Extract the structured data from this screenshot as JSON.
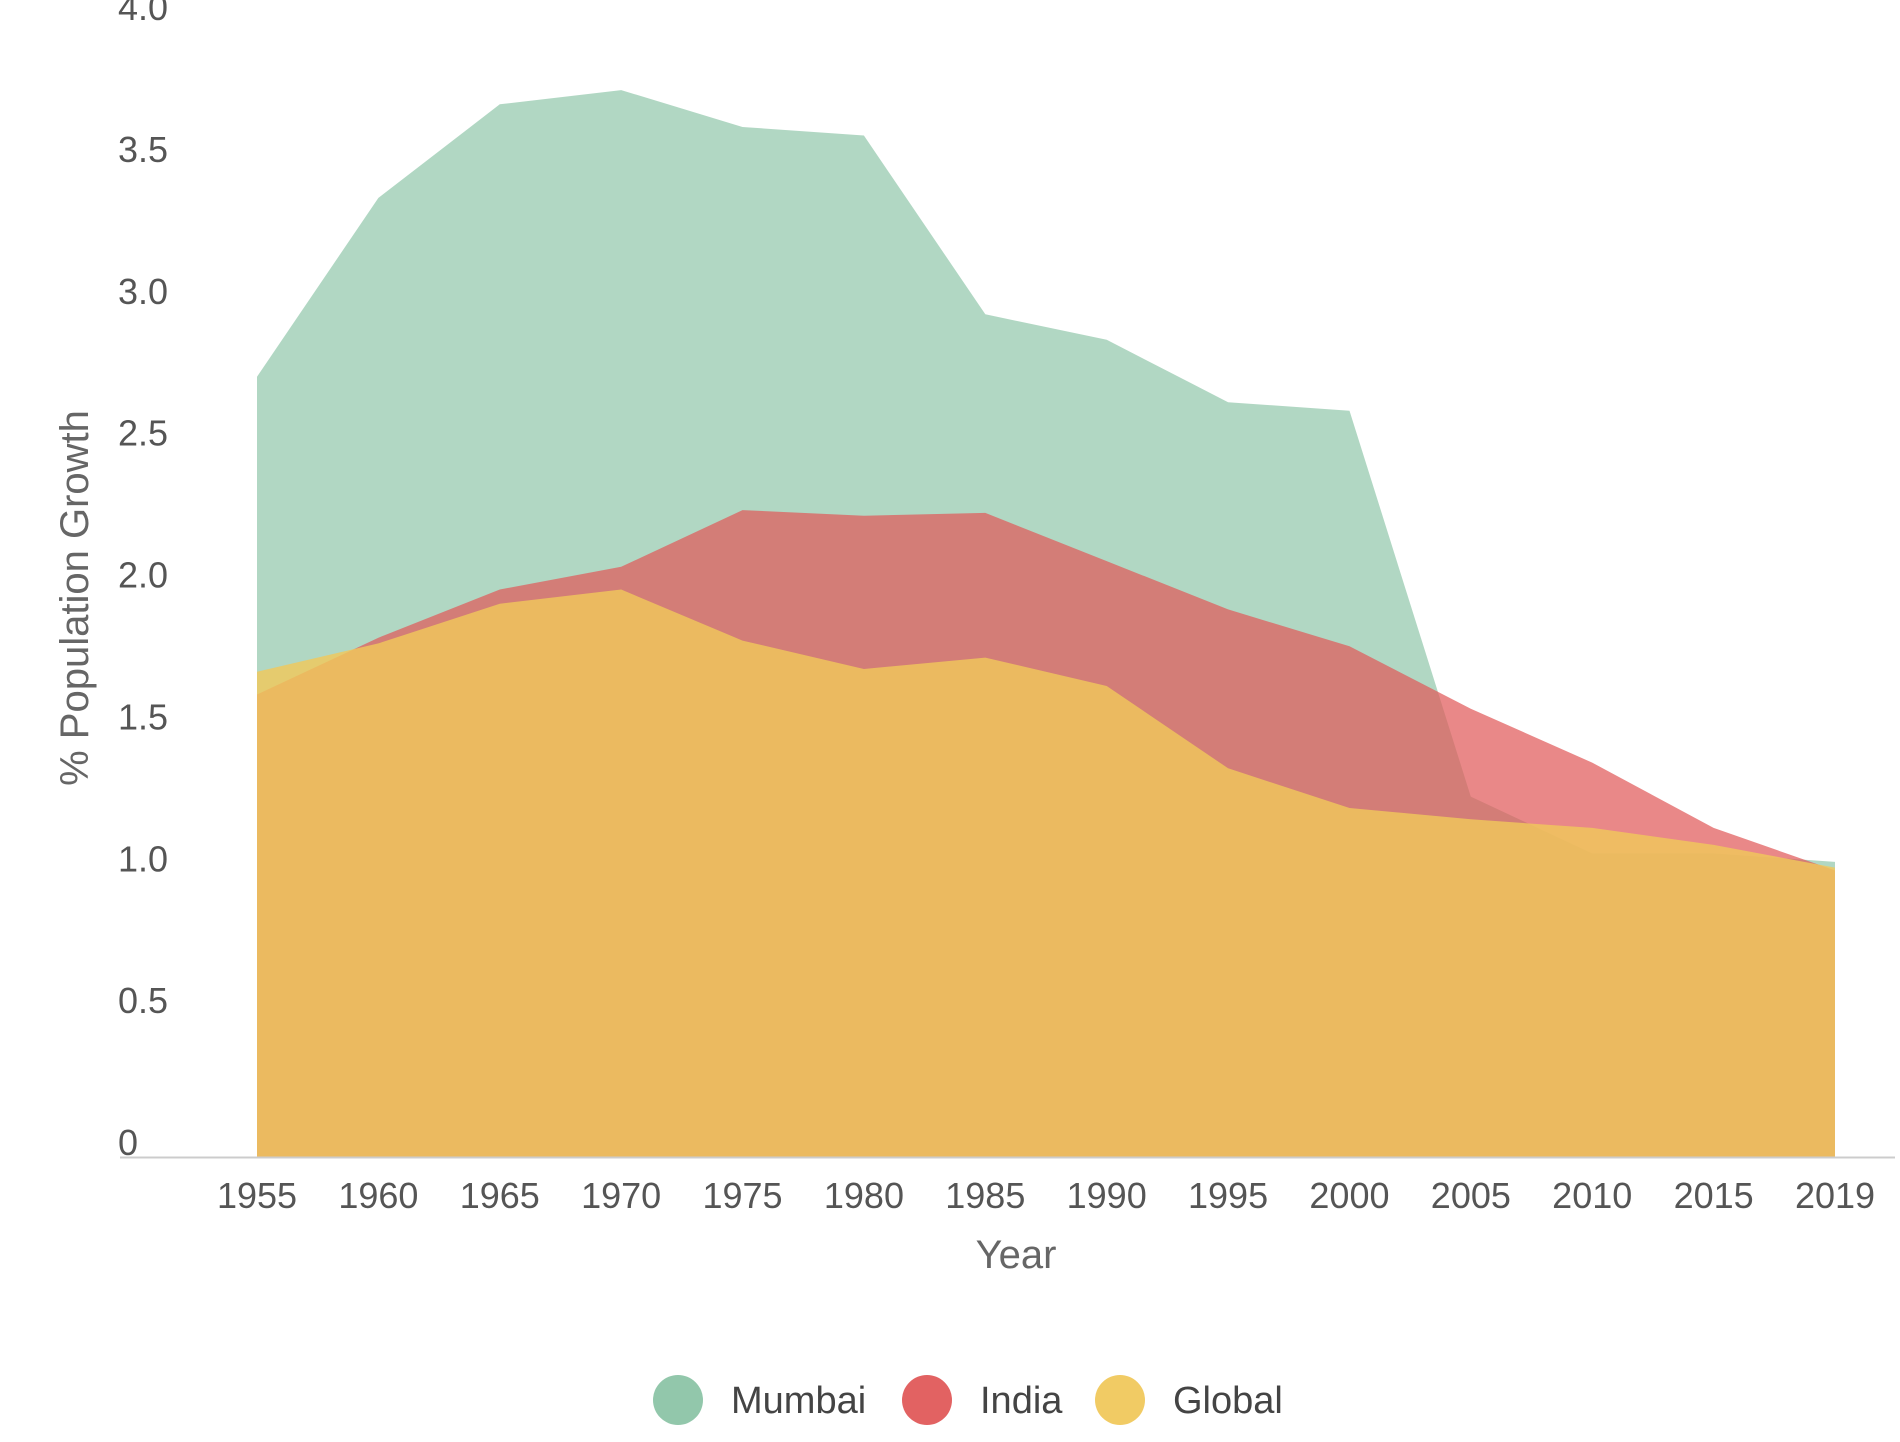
{
  "chart_data": {
    "type": "area",
    "title": "",
    "xlabel": "Year",
    "ylabel": "% Population Growth",
    "x": [
      "1955",
      "1960",
      "1965",
      "1970",
      "1975",
      "1980",
      "1985",
      "1990",
      "1995",
      "2000",
      "2005",
      "2010",
      "2015",
      "2019"
    ],
    "yticks": [
      "0",
      "0.5",
      "1.0",
      "1.5",
      "2.0",
      "2.5",
      "3.0",
      "3.5",
      "4.0"
    ],
    "ylim": [
      0,
      4.0
    ],
    "grid": false,
    "legend_position": "bottom",
    "series": [
      {
        "name": "Mumbai",
        "color": "#8cc4a6",
        "values": [
          2.75,
          3.38,
          3.71,
          3.76,
          3.63,
          3.6,
          2.97,
          2.88,
          2.66,
          2.63,
          1.27,
          1.07,
          1.07,
          1.04
        ]
      },
      {
        "name": "India",
        "color": "#e05a5a",
        "values": [
          1.63,
          1.83,
          2.0,
          2.08,
          2.28,
          2.26,
          2.27,
          2.1,
          1.93,
          1.8,
          1.58,
          1.39,
          1.16,
          1.01
        ]
      },
      {
        "name": "Global",
        "color": "#f0c85c",
        "values": [
          1.71,
          1.81,
          1.95,
          2.0,
          1.82,
          1.72,
          1.76,
          1.66,
          1.37,
          1.23,
          1.19,
          1.16,
          1.1,
          1.02
        ]
      }
    ]
  }
}
